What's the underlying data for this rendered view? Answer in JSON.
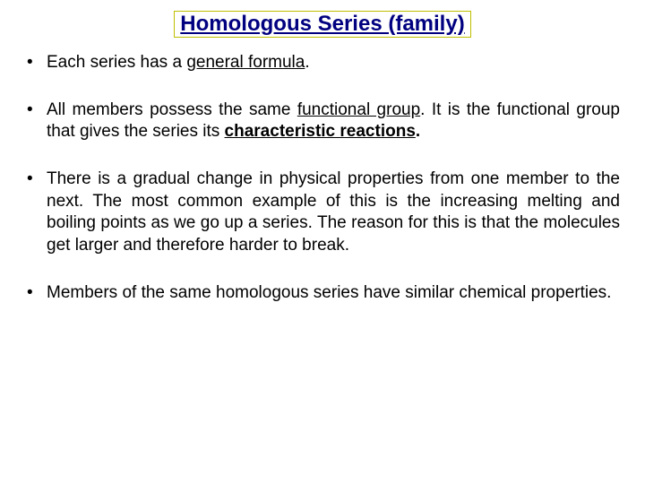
{
  "title": {
    "text": "Homologous Series  (family)",
    "border_color": "#bfbf00",
    "text_color": "#000080",
    "fontsize_pt": 24
  },
  "body": {
    "fontsize_pt": 19,
    "text_color": "#000000",
    "font_family": "Comic Sans MS"
  },
  "bullets": [
    {
      "parts": [
        {
          "t": "Each series has a ",
          "cls": ""
        },
        {
          "t": "general formula",
          "cls": "u"
        },
        {
          "t": ".",
          "cls": ""
        }
      ]
    },
    {
      "parts": [
        {
          "t": "All members possess the same ",
          "cls": ""
        },
        {
          "t": "functional group",
          "cls": "u"
        },
        {
          "t": ". It is the functional group that gives the series its ",
          "cls": ""
        },
        {
          "t": "characteristic reactions",
          "cls": "bu"
        },
        {
          "t": ".",
          "cls": "b"
        }
      ]
    },
    {
      "parts": [
        {
          "t": "There is a gradual change in physical properties from one member to the next. The most common example of this is the increasing melting and boiling points as we go up a series. The reason for this is that the molecules get larger and therefore harder to break.",
          "cls": ""
        }
      ]
    },
    {
      "parts": [
        {
          "t": "Members of the same homologous series have similar chemical properties.",
          "cls": ""
        }
      ]
    }
  ]
}
